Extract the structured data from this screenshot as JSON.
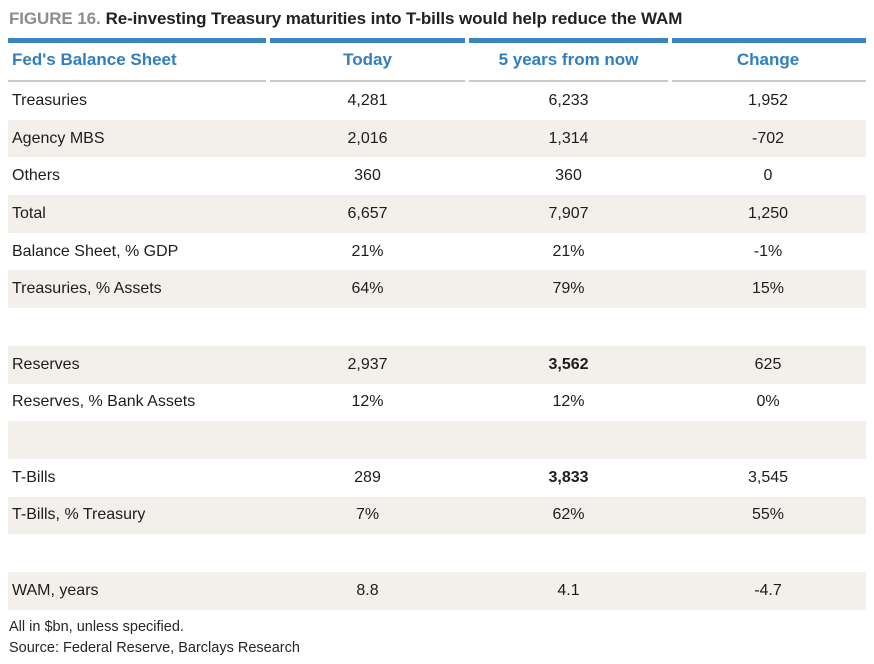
{
  "figure": {
    "label": "FIGURE 16.",
    "title": "Re-investing Treasury maturities into T-bills would help reduce the WAM"
  },
  "chart_data": {
    "type": "table",
    "title": "FIGURE 16. Re-investing Treasury maturities into T-bills would help reduce the WAM",
    "columns": [
      "Fed's Balance Sheet",
      "Today",
      "5 years from now",
      "Change"
    ],
    "rows": [
      {
        "label": "Treasuries",
        "today": "4,281",
        "future": "6,233",
        "change": "1,952"
      },
      {
        "label": "Agency MBS",
        "today": "2,016",
        "future": "1,314",
        "change": "-702"
      },
      {
        "label": "Others",
        "today": "360",
        "future": "360",
        "change": "0"
      },
      {
        "label": "Total",
        "today": "6,657",
        "future": "7,907",
        "change": "1,250"
      },
      {
        "label": "Balance Sheet, % GDP",
        "today": "21%",
        "future": "21%",
        "change": "-1%"
      },
      {
        "label": "Treasuries, % Assets",
        "today": "64%",
        "future": "79%",
        "change": "15%"
      },
      {
        "spacer": true
      },
      {
        "label": "Reserves",
        "today": "2,937",
        "future": "3,562",
        "change": "625",
        "bold": [
          "future"
        ]
      },
      {
        "label": "Reserves, % Bank Assets",
        "today": "12%",
        "future": "12%",
        "change": "0%"
      },
      {
        "spacer": true
      },
      {
        "label": "T-Bills",
        "today": "289",
        "future": "3,833",
        "change": "3,545",
        "bold": [
          "future"
        ]
      },
      {
        "label": "T-Bills, % Treasury",
        "today": "7%",
        "future": "62%",
        "change": "55%"
      },
      {
        "spacer": true
      },
      {
        "label": "WAM, years",
        "today": "8.8",
        "future": "4.1",
        "change": "-4.7"
      }
    ],
    "footnotes": [
      "All in $bn, unless specified.",
      "Source: Federal Reserve, Barclays Research"
    ],
    "layout": {
      "column_alignment": [
        "left",
        "center",
        "center",
        "center"
      ],
      "alternating_row_shading": true
    }
  },
  "colors": {
    "accent_blue": "#2f7fbe",
    "header_rule_blue": "#3a85bc",
    "header_rule_gray": "#c9c9c9",
    "row_alt_beige": "#f3efeb",
    "figure_label_gray": "#8d8d8d",
    "text_dark": "#1d1d1d"
  }
}
